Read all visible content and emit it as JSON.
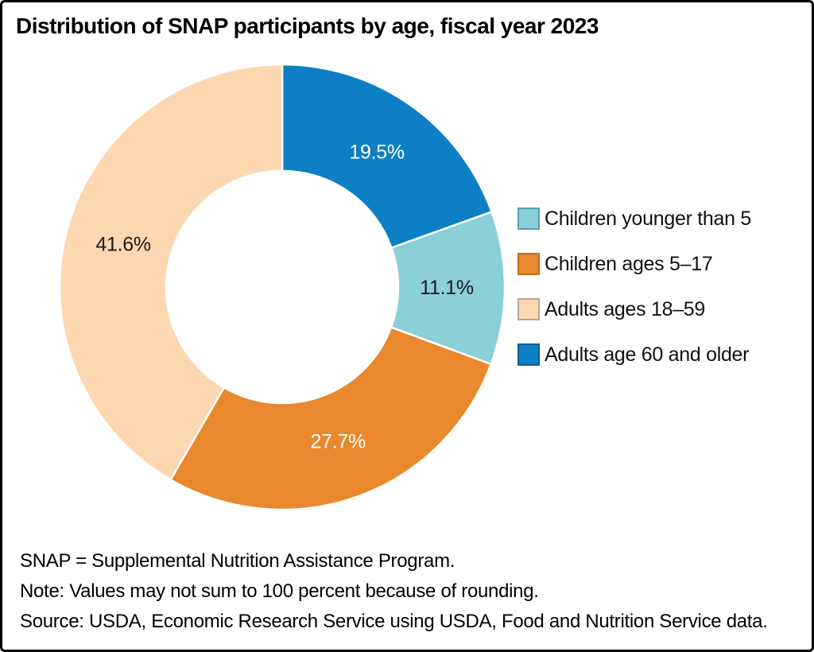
{
  "title": "Distribution of SNAP participants by age, fiscal year 2023",
  "chart_data": {
    "type": "pie",
    "subtype": "donut",
    "start_angle_deg": 0,
    "direction": "clockwise",
    "inner_radius_ratio": 0.52,
    "legend_position": "right",
    "slices": [
      {
        "label": "Adults age 60 and older",
        "value": 19.5,
        "display": "19.5%",
        "color": "#0d80c5",
        "label_color": "#ffffff"
      },
      {
        "label": "Children younger than 5",
        "value": 11.1,
        "display": "11.1%",
        "color": "#8bcfd7",
        "label_color": "#1a1a1a"
      },
      {
        "label": "Children ages 5–17",
        "value": 27.7,
        "display": "27.7%",
        "color": "#e9882c",
        "label_color": "#ffffff"
      },
      {
        "label": "Adults ages 18–59",
        "value": 41.6,
        "display": "41.6%",
        "color": "#fcd7b2",
        "label_color": "#1a1a1a"
      }
    ]
  },
  "legend": {
    "items": [
      {
        "label": "Children younger than 5",
        "color": "#8bcfd7",
        "border": "#4ea6b0"
      },
      {
        "label": "Children ages 5–17",
        "color": "#e9882c",
        "border": "#bb6d22"
      },
      {
        "label": "Adults ages 18–59",
        "color": "#fcd7b2",
        "border": "#b5a698"
      },
      {
        "label": "Adults age 60 and older",
        "color": "#0d80c5",
        "border": "#0b5f92"
      }
    ]
  },
  "notes": {
    "line1": "SNAP = Supplemental Nutrition Assistance Program.",
    "line2": "Note: Values may not sum to 100 percent because of rounding.",
    "line3": "Source: USDA, Economic Research Service using USDA, Food and Nutrition Service data."
  }
}
